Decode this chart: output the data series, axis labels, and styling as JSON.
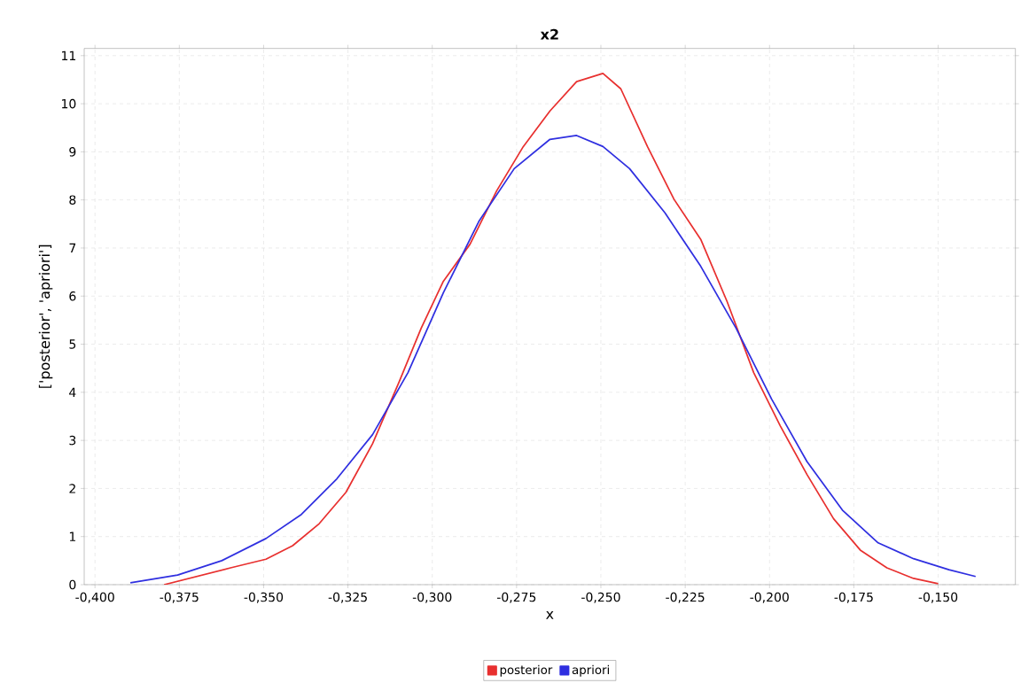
{
  "chart_data": {
    "type": "line",
    "title": "x2",
    "xlabel": "x",
    "ylabel": "['posterior', 'apriori']",
    "xlim": [
      -0.4032,
      -0.1271
    ],
    "ylim": [
      0,
      11.15
    ],
    "xticks": [
      {
        "value": -0.4,
        "label": "-0,400"
      },
      {
        "value": -0.375,
        "label": "-0,375"
      },
      {
        "value": -0.35,
        "label": "-0,350"
      },
      {
        "value": -0.325,
        "label": "-0,325"
      },
      {
        "value": -0.3,
        "label": "-0,300"
      },
      {
        "value": -0.275,
        "label": "-0,275"
      },
      {
        "value": -0.25,
        "label": "-0,250"
      },
      {
        "value": -0.225,
        "label": "-0,225"
      },
      {
        "value": -0.2,
        "label": "-0,200"
      },
      {
        "value": -0.175,
        "label": "-0,175"
      },
      {
        "value": -0.15,
        "label": "-0,150"
      }
    ],
    "yticks": [
      0,
      1,
      2,
      3,
      4,
      5,
      6,
      7,
      8,
      9,
      10,
      11
    ],
    "grid": true,
    "legend": "bottom",
    "marker": "none",
    "line_style": "solid",
    "series": [
      {
        "name": "posterior",
        "color": "#e8302f",
        "x": [
          -0.3795,
          -0.3598,
          -0.3493,
          -0.3414,
          -0.3335,
          -0.3256,
          -0.3177,
          -0.3098,
          -0.3033,
          -0.2967,
          -0.2888,
          -0.2809,
          -0.273,
          -0.2651,
          -0.2572,
          -0.2494,
          -0.2441,
          -0.2362,
          -0.2283,
          -0.2204,
          -0.2126,
          -0.2047,
          -0.1968,
          -0.1889,
          -0.181,
          -0.1731,
          -0.1652,
          -0.1573,
          -0.15
        ],
        "values": [
          0,
          0.35,
          0.53,
          0.81,
          1.27,
          1.92,
          2.93,
          4.22,
          5.33,
          6.31,
          7.08,
          8.19,
          9.11,
          9.85,
          10.46,
          10.63,
          10.31,
          9.11,
          8.01,
          7.18,
          5.89,
          4.41,
          3.3,
          2.29,
          1.37,
          0.72,
          0.35,
          0.13,
          0.02
        ]
      },
      {
        "name": "apriori",
        "color": "#2f2fe0",
        "x": [
          -0.3895,
          -0.3755,
          -0.3624,
          -0.3493,
          -0.3388,
          -0.3283,
          -0.3177,
          -0.3072,
          -0.2967,
          -0.2862,
          -0.2757,
          -0.2651,
          -0.2572,
          -0.2494,
          -0.2415,
          -0.231,
          -0.2204,
          -0.2099,
          -0.1994,
          -0.1889,
          -0.1784,
          -0.1678,
          -0.1573,
          -0.1468,
          -0.1389
        ],
        "values": [
          0.04,
          0.2,
          0.5,
          0.96,
          1.46,
          2.2,
          3.12,
          4.41,
          6.07,
          7.55,
          8.65,
          9.26,
          9.34,
          9.11,
          8.65,
          7.73,
          6.62,
          5.33,
          3.86,
          2.56,
          1.55,
          0.87,
          0.54,
          0.31,
          0.17
        ]
      }
    ]
  }
}
